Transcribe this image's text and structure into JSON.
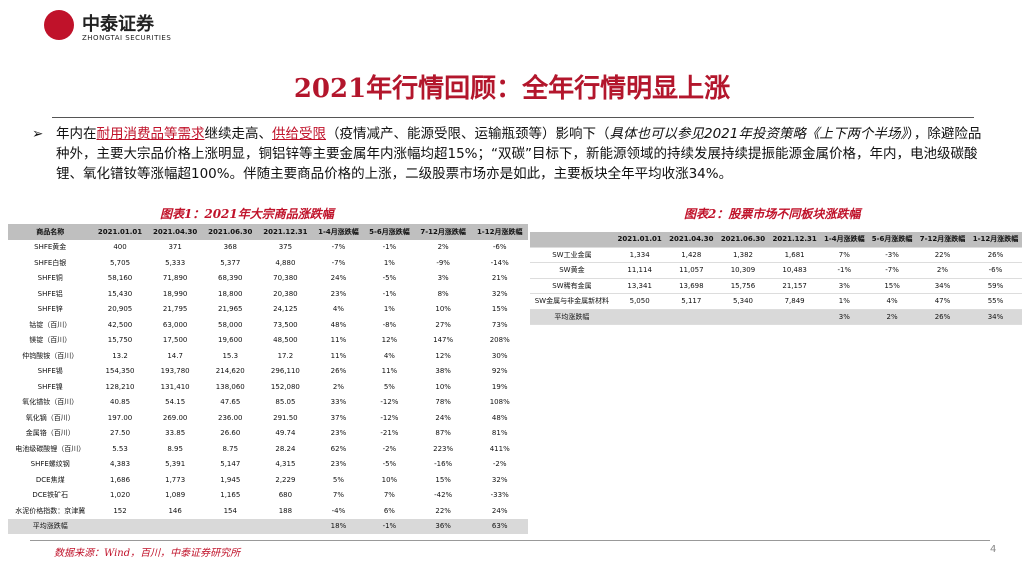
{
  "header": {
    "brand": "中泰证券",
    "brand_en": "ZHONGTAI SECURITIES"
  },
  "title": "2021年行情回顾：全年行情明显上涨",
  "bullet": {
    "parts": [
      "年内在",
      "耐用消费品等需求",
      "继续走高、",
      "供给受限",
      "（疫情减产、能源受限、运输瓶颈等）影响下（",
      "具体也可以参见2021年投资策略《上下两个半场》",
      "），除避险品种外，主要大宗品价格上涨明显，铜铝锌等主要金属年内涨幅均超15%；“双碳”目标下，新能源领域的持续发展持续提振能源金属价格，年内，电池级碳酸锂、氧化镨钕等涨幅超100%。伴随主要商品价格的上涨，二级股票市场亦是如此，主要板块全年平均收涨34%。"
    ]
  },
  "table1": {
    "caption": "图表1：2021年大宗商品涨跌幅",
    "columns": [
      "商品名称",
      "2021.01.01",
      "2021.04.30",
      "2021.06.30",
      "2021.12.31",
      "1-4月涨跌幅",
      "5-6月涨跌幅",
      "7-12月涨跌幅",
      "1-12月涨跌幅"
    ],
    "rows": [
      [
        "SHFE黄金",
        "400",
        "371",
        "368",
        "375",
        "-7%",
        "-1%",
        "2%",
        "-6%"
      ],
      [
        "SHFE白银",
        "5,705",
        "5,333",
        "5,377",
        "4,880",
        "-7%",
        "1%",
        "-9%",
        "-14%"
      ],
      [
        "SHFE铜",
        "58,160",
        "71,890",
        "68,390",
        "70,380",
        "24%",
        "-5%",
        "3%",
        "21%"
      ],
      [
        "SHFE铝",
        "15,430",
        "18,990",
        "18,800",
        "20,380",
        "23%",
        "-1%",
        "8%",
        "32%"
      ],
      [
        "SHFE锌",
        "20,905",
        "21,795",
        "21,965",
        "24,125",
        "4%",
        "1%",
        "10%",
        "15%"
      ],
      [
        "钴锭（百川）",
        "42,500",
        "63,000",
        "58,000",
        "73,500",
        "48%",
        "-8%",
        "27%",
        "73%"
      ],
      [
        "镁锭（百川）",
        "15,750",
        "17,500",
        "19,600",
        "48,500",
        "11%",
        "12%",
        "147%",
        "208%"
      ],
      [
        "仲钨酸铵（百川）",
        "13.2",
        "14.7",
        "15.3",
        "17.2",
        "11%",
        "4%",
        "12%",
        "30%"
      ],
      [
        "SHFE锡",
        "154,350",
        "193,780",
        "214,620",
        "296,110",
        "26%",
        "11%",
        "38%",
        "92%"
      ],
      [
        "SHFE镍",
        "128,210",
        "131,410",
        "138,060",
        "152,080",
        "2%",
        "5%",
        "10%",
        "19%"
      ],
      [
        "氧化镨钕（百川）",
        "40.85",
        "54.15",
        "47.65",
        "85.05",
        "33%",
        "-12%",
        "78%",
        "108%"
      ],
      [
        "氧化镝（百川）",
        "197.00",
        "269.00",
        "236.00",
        "291.50",
        "37%",
        "-12%",
        "24%",
        "48%"
      ],
      [
        "金属铬（百川）",
        "27.50",
        "33.85",
        "26.60",
        "49.74",
        "23%",
        "-21%",
        "87%",
        "81%"
      ],
      [
        "电池级碳酸锂（百川）",
        "5.53",
        "8.95",
        "8.75",
        "28.24",
        "62%",
        "-2%",
        "223%",
        "411%"
      ],
      [
        "SHFE螺纹钢",
        "4,383",
        "5,391",
        "5,147",
        "4,315",
        "23%",
        "-5%",
        "-16%",
        "-2%"
      ],
      [
        "DCE焦煤",
        "1,686",
        "1,773",
        "1,945",
        "2,229",
        "5%",
        "10%",
        "15%",
        "32%"
      ],
      [
        "DCE铁矿石",
        "1,020",
        "1,089",
        "1,165",
        "680",
        "7%",
        "7%",
        "-42%",
        "-33%"
      ],
      [
        "水泥价格指数：京津冀",
        "152",
        "146",
        "154",
        "188",
        "-4%",
        "6%",
        "22%",
        "24%"
      ],
      [
        "平均涨跌幅",
        null,
        null,
        null,
        null,
        "18%",
        "-1%",
        "36%",
        "63%"
      ]
    ]
  },
  "table2": {
    "caption": "图表2：股票市场不同板块涨跌幅",
    "columns": [
      null,
      "2021.01.01",
      "2021.04.30",
      "2021.06.30",
      "2021.12.31",
      "1-4月涨跌幅",
      "5-6月涨跌幅",
      "7-12月涨跌幅",
      "1-12月涨跌幅"
    ],
    "rows": [
      [
        "SW工业金属",
        "1,334",
        "1,428",
        "1,382",
        "1,681",
        "7%",
        "-3%",
        "22%",
        "26%"
      ],
      [
        "SW黄金",
        "11,114",
        "11,057",
        "10,309",
        "10,483",
        "-1%",
        "-7%",
        "2%",
        "-6%"
      ],
      [
        "SW稀有金属",
        "13,341",
        "13,698",
        "15,756",
        "21,157",
        "3%",
        "15%",
        "34%",
        "59%"
      ],
      [
        "SW金属与非金属新材料",
        "5,050",
        "5,117",
        "5,340",
        "7,849",
        "1%",
        "4%",
        "47%",
        "55%"
      ],
      [
        "平均涨跌幅",
        null,
        null,
        null,
        null,
        "3%",
        "2%",
        "26%",
        "34%"
      ]
    ]
  },
  "footer": {
    "source": "数据来源：Wind，百川，中泰证券研究所",
    "page": "4"
  }
}
